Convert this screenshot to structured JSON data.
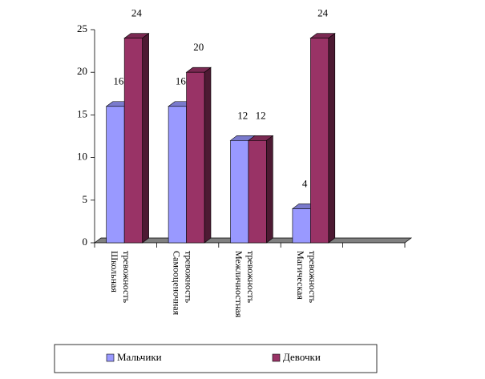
{
  "chart_data": {
    "type": "bar3d",
    "categories": [
      "Школьная тревожность",
      "Самооценочная тревожность",
      "Межличностная тревожность",
      "Магическая тревожность",
      null
    ],
    "series": [
      {
        "name": "Мальчики",
        "color": "#9999ff",
        "values": [
          16,
          16,
          12,
          4,
          null
        ]
      },
      {
        "name": "Девочки",
        "color": "#993366",
        "values": [
          24,
          20,
          12,
          24,
          null
        ]
      }
    ],
    "ylim": [
      0,
      25
    ],
    "yticks": [
      0,
      5,
      10,
      15,
      20,
      25
    ],
    "grid": false,
    "legend": "bottom"
  }
}
